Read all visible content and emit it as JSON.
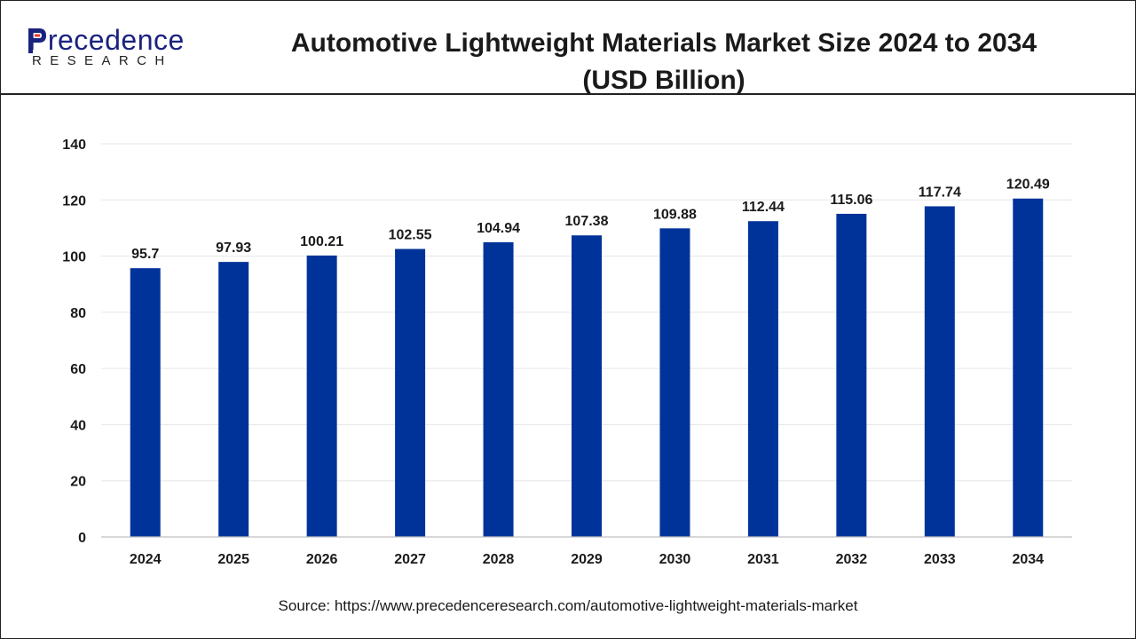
{
  "brand": {
    "name": "Precedence",
    "tagline": "RESEARCH",
    "brand_color": "#1a237e"
  },
  "header": {
    "title_line1": "Automotive Lightweight Materials Market Size 2024 to 2034",
    "title_line2": "(USD Billion)"
  },
  "source": "Source: https://www.precedenceresearch.com/automotive-lightweight-materials-market",
  "chart_data": {
    "type": "bar",
    "title": "Automotive Lightweight Materials Market Size 2024 to 2034 (USD Billion)",
    "xlabel": "",
    "ylabel": "",
    "categories": [
      "2024",
      "2025",
      "2026",
      "2027",
      "2028",
      "2029",
      "2030",
      "2031",
      "2032",
      "2033",
      "2034"
    ],
    "values": [
      95.7,
      97.93,
      100.21,
      102.55,
      104.94,
      107.38,
      109.88,
      112.44,
      115.06,
      117.74,
      120.49
    ],
    "value_labels": [
      "95.7",
      "97.93",
      "100.21",
      "102.55",
      "104.94",
      "107.38",
      "109.88",
      "112.44",
      "115.06",
      "117.74",
      "120.49"
    ],
    "ylim": [
      0,
      140
    ],
    "yticks": [
      0,
      20,
      40,
      60,
      80,
      100,
      120,
      140
    ],
    "grid": true,
    "bar_color": "#003399",
    "legend": "none"
  }
}
